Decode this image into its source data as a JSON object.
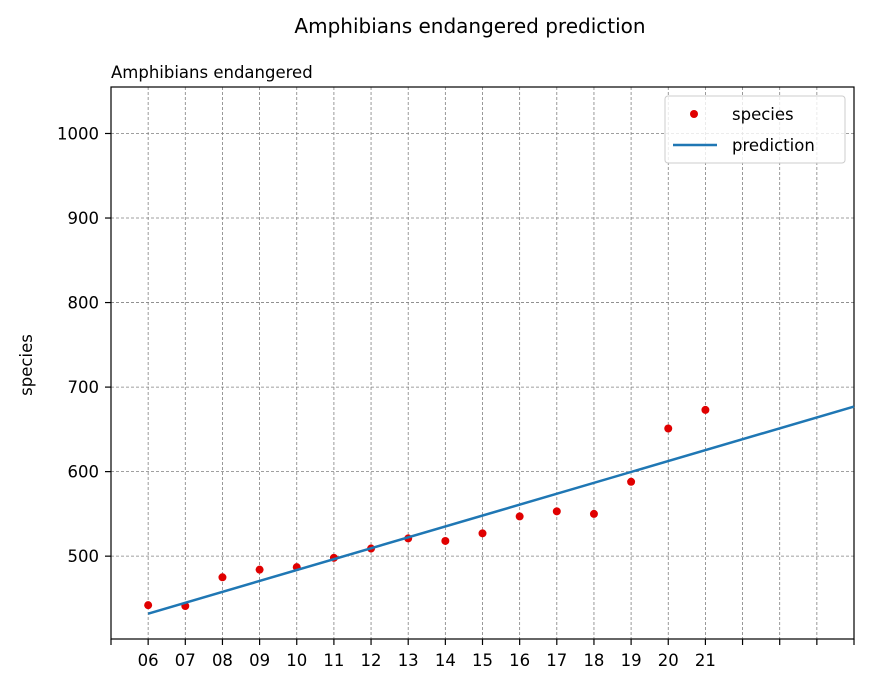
{
  "chart_data": {
    "type": "scatter",
    "title": "Amphibians endangered prediction",
    "subtitle": "Amphibians endangered",
    "xlabel": "",
    "ylabel": "species",
    "x_tick_labels": [
      "06",
      "07",
      "08",
      "09",
      "10",
      "11",
      "12",
      "13",
      "14",
      "15",
      "16",
      "17",
      "18",
      "19",
      "20",
      "21",
      "",
      "",
      ""
    ],
    "y_ticks": [
      500,
      600,
      700,
      800,
      900,
      1000
    ],
    "xlim": [
      2005,
      2025
    ],
    "ylim": [
      402,
      1055
    ],
    "grid": true,
    "legend_position": "top-right",
    "series": [
      {
        "name": "species",
        "kind": "points",
        "color": "#e00000",
        "x": [
          2006,
          2007,
          2008,
          2009,
          2010,
          2011,
          2012,
          2013,
          2014,
          2015,
          2016,
          2017,
          2018,
          2019,
          2020,
          2021
        ],
        "y": [
          442,
          441,
          475,
          484,
          487,
          498,
          509,
          521,
          518,
          527,
          547,
          553,
          550,
          588,
          651,
          673
        ]
      },
      {
        "name": "prediction",
        "kind": "line",
        "color": "#1f77b4",
        "x": [
          2006,
          2025
        ],
        "y": [
          432,
          677
        ]
      }
    ]
  }
}
